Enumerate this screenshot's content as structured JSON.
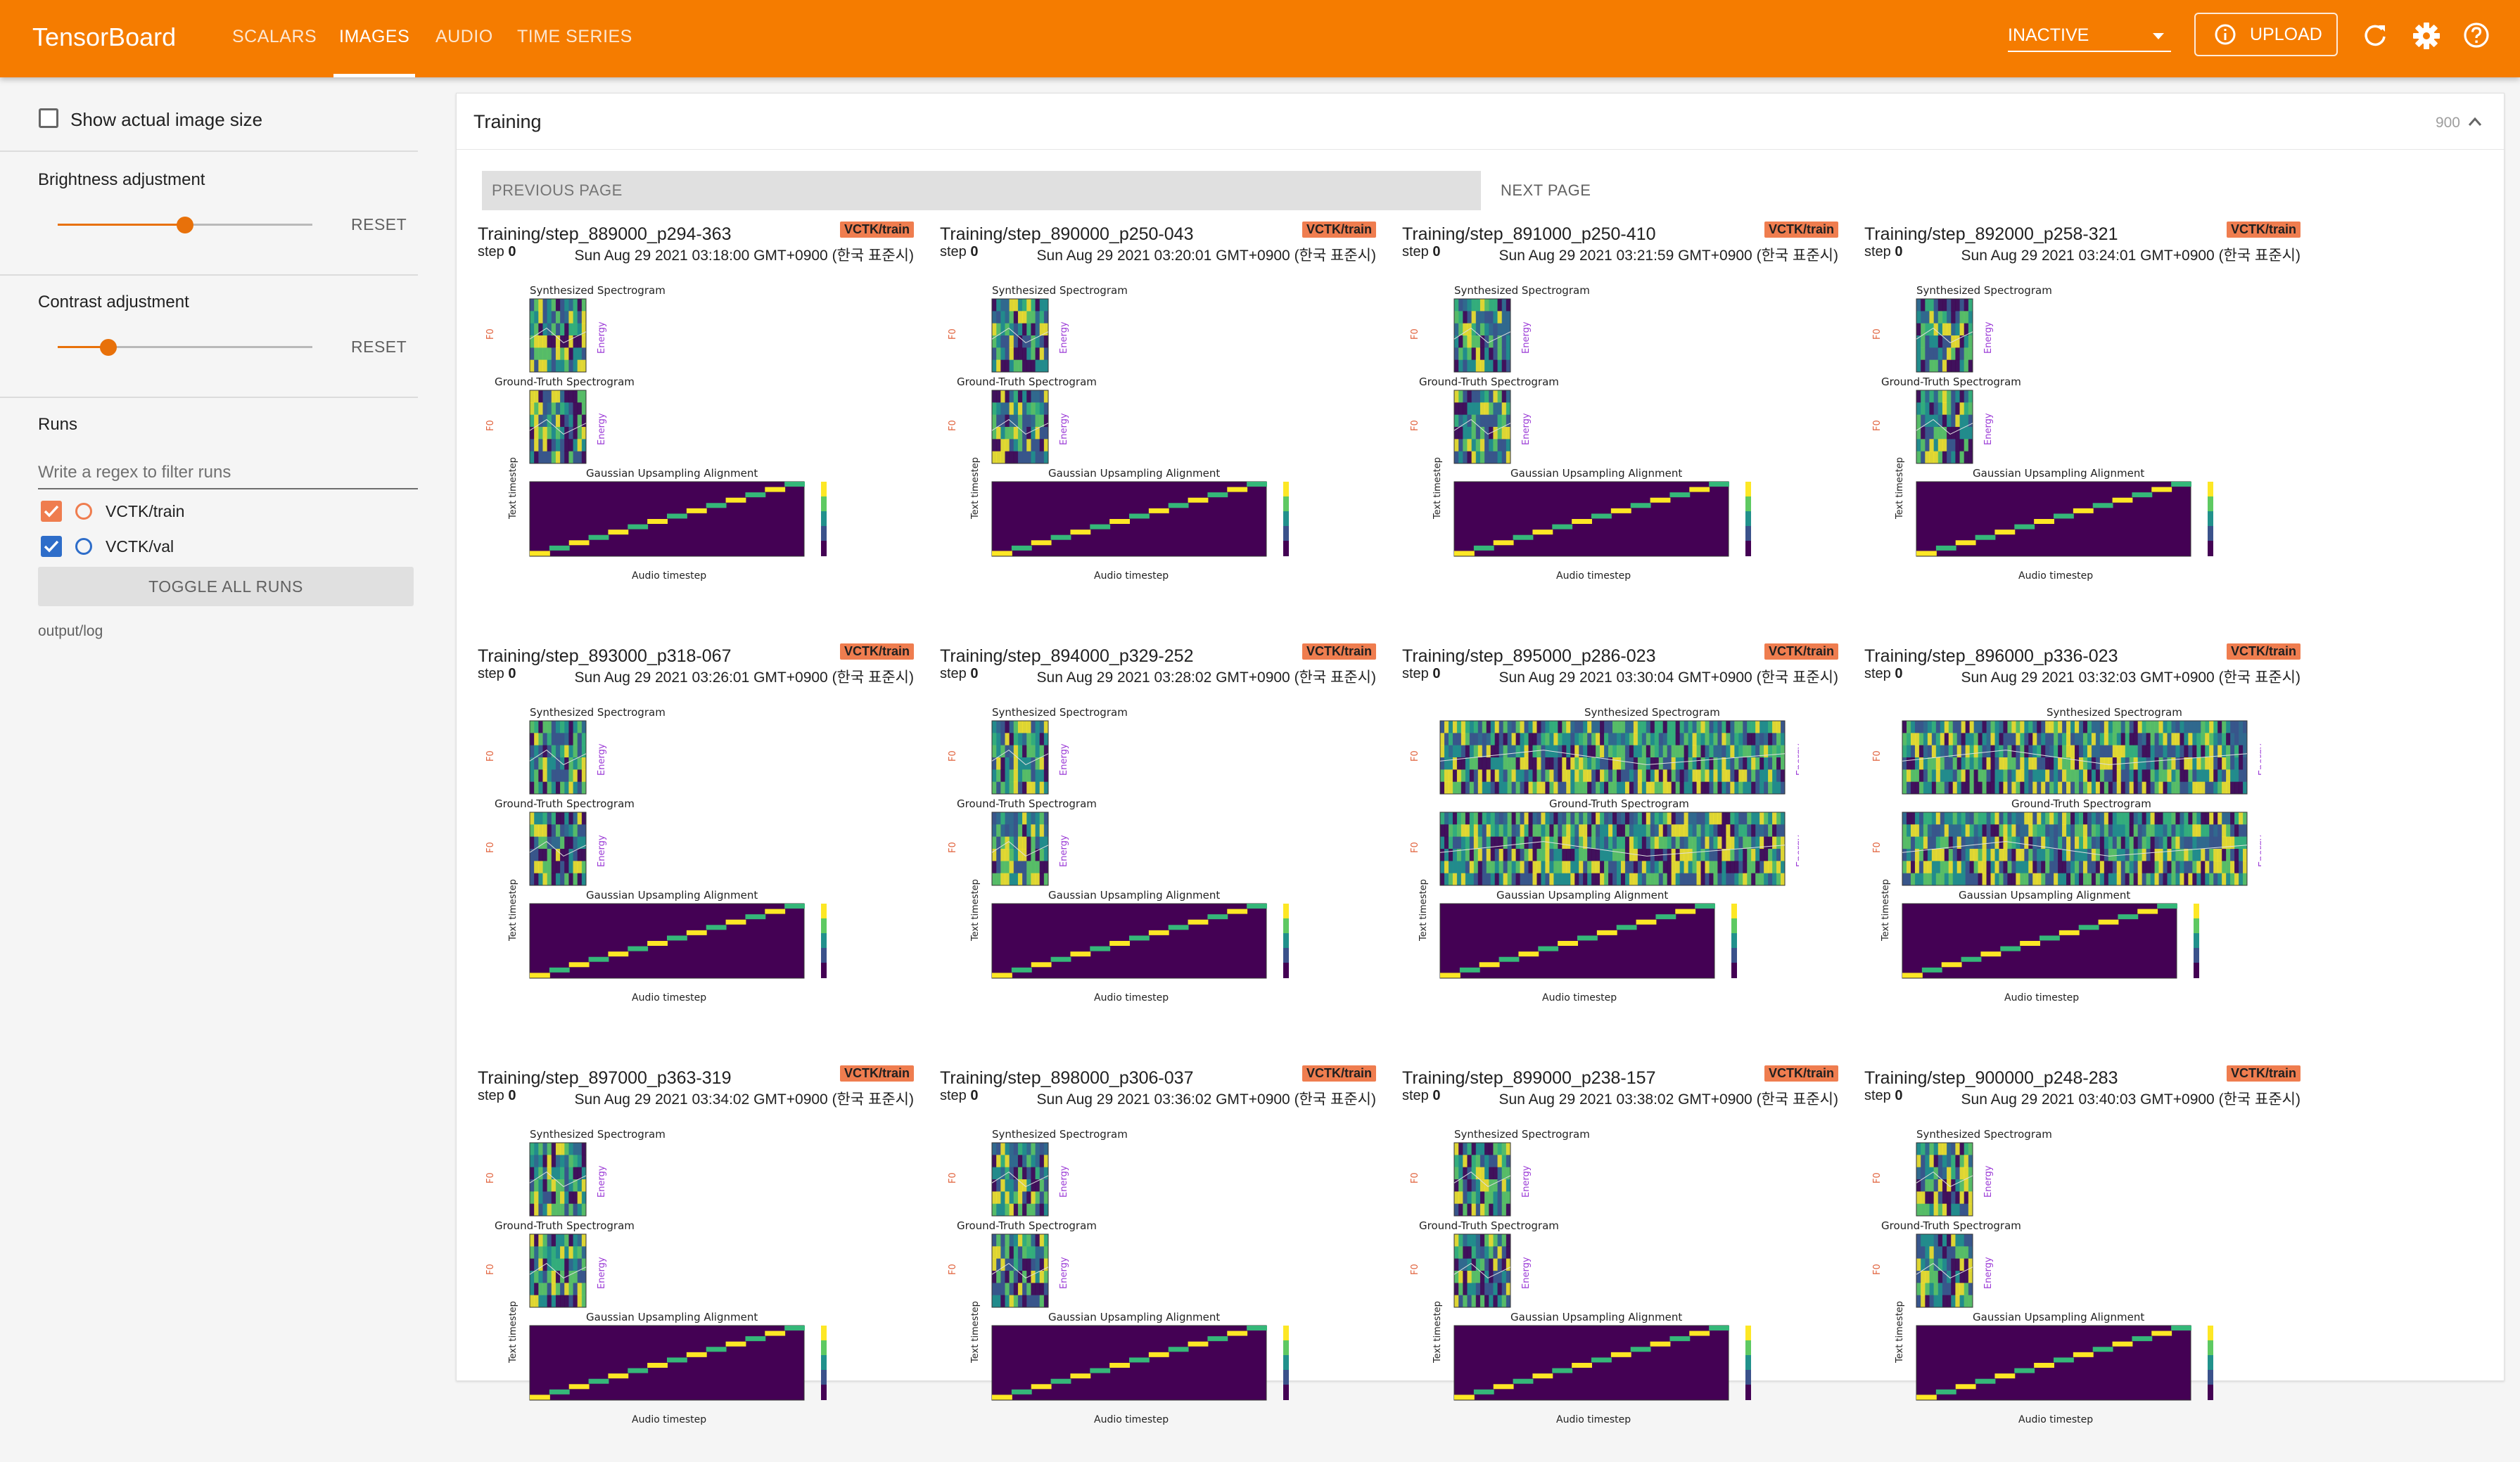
{
  "app": {
    "title": "TensorBoard"
  },
  "nav": {
    "tabs": [
      {
        "label": "SCALARS"
      },
      {
        "label": "IMAGES"
      },
      {
        "label": "AUDIO"
      },
      {
        "label": "TIME SERIES"
      }
    ],
    "active_tab": "IMAGES"
  },
  "header": {
    "status_value": "INACTIVE",
    "upload_label": "UPLOAD",
    "icons": [
      "info-icon",
      "refresh-icon",
      "settings-icon",
      "help-icon"
    ],
    "accent_color": "#f57c00"
  },
  "sidebar": {
    "show_actual_size_label": "Show actual image size",
    "brightness": {
      "label": "Brightness adjustment",
      "reset_label": "RESET",
      "value_fraction": 0.5
    },
    "contrast": {
      "label": "Contrast adjustment",
      "reset_label": "RESET",
      "value_fraction": 0.2
    },
    "runs": {
      "title": "Runs",
      "filter_placeholder": "Write a regex to filter runs",
      "items": [
        {
          "label": "VCTK/train",
          "checked": true,
          "color": "#ef7d4f"
        },
        {
          "label": "VCTK/val",
          "checked": true,
          "color": "#2e6dc9"
        }
      ],
      "toggle_all_label": "TOGGLE ALL RUNS",
      "log_dir": "output/log"
    }
  },
  "main": {
    "card_title": "Training",
    "card_count": "900",
    "prev_page_label": "PREVIOUS PAGE",
    "next_page_label": "NEXT PAGE",
    "images": [
      {
        "tag": "Training/step_889000_p294-363",
        "run": "VCTK/train",
        "step_label": "step",
        "step": "0",
        "time": "Sun Aug 29 2021 03:18:00 GMT+0900 (한국 표준시)"
      },
      {
        "tag": "Training/step_890000_p250-043",
        "run": "VCTK/train",
        "step_label": "step",
        "step": "0",
        "time": "Sun Aug 29 2021 03:20:01 GMT+0900 (한국 표준시)"
      },
      {
        "tag": "Training/step_891000_p250-410",
        "run": "VCTK/train",
        "step_label": "step",
        "step": "0",
        "time": "Sun Aug 29 2021 03:21:59 GMT+0900 (한국 표준시)"
      },
      {
        "tag": "Training/step_892000_p258-321",
        "run": "VCTK/train",
        "step_label": "step",
        "step": "0",
        "time": "Sun Aug 29 2021 03:24:01 GMT+0900 (한국 표준시)"
      },
      {
        "tag": "Training/step_893000_p318-067",
        "run": "VCTK/train",
        "step_label": "step",
        "step": "0",
        "time": "Sun Aug 29 2021 03:26:01 GMT+0900 (한국 표준시)"
      },
      {
        "tag": "Training/step_894000_p329-252",
        "run": "VCTK/train",
        "step_label": "step",
        "step": "0",
        "time": "Sun Aug 29 2021 03:28:02 GMT+0900 (한국 표준시)"
      },
      {
        "tag": "Training/step_895000_p286-023",
        "run": "VCTK/train",
        "step_label": "step",
        "step": "0",
        "time": "Sun Aug 29 2021 03:30:04 GMT+0900 (한국 표준시)"
      },
      {
        "tag": "Training/step_896000_p336-023",
        "run": "VCTK/train",
        "step_label": "step",
        "step": "0",
        "time": "Sun Aug 29 2021 03:32:03 GMT+0900 (한국 표준시)"
      },
      {
        "tag": "Training/step_897000_p363-319",
        "run": "VCTK/train",
        "step_label": "step",
        "step": "0",
        "time": "Sun Aug 29 2021 03:34:02 GMT+0900 (한국 표준시)"
      },
      {
        "tag": "Training/step_898000_p306-037",
        "run": "VCTK/train",
        "step_label": "step",
        "step": "0",
        "time": "Sun Aug 29 2021 03:36:02 GMT+0900 (한국 표준시)"
      },
      {
        "tag": "Training/step_899000_p238-157",
        "run": "VCTK/train",
        "step_label": "step",
        "step": "0",
        "time": "Sun Aug 29 2021 03:38:02 GMT+0900 (한국 표준시)"
      },
      {
        "tag": "Training/step_900000_p248-283",
        "run": "VCTK/train",
        "step_label": "step",
        "step": "0",
        "time": "Sun Aug 29 2021 03:40:03 GMT+0900 (한국 표준시)"
      }
    ],
    "plot_labels": {
      "synth": "Synthesized Spectrogram",
      "gt": "Ground-Truth Spectrogram",
      "align": "Gaussian Upsampling Alignment",
      "f0": "F0",
      "energy": "Energy",
      "text_axis": "Text timestep",
      "audio_axis": "Audio timestep"
    }
  }
}
